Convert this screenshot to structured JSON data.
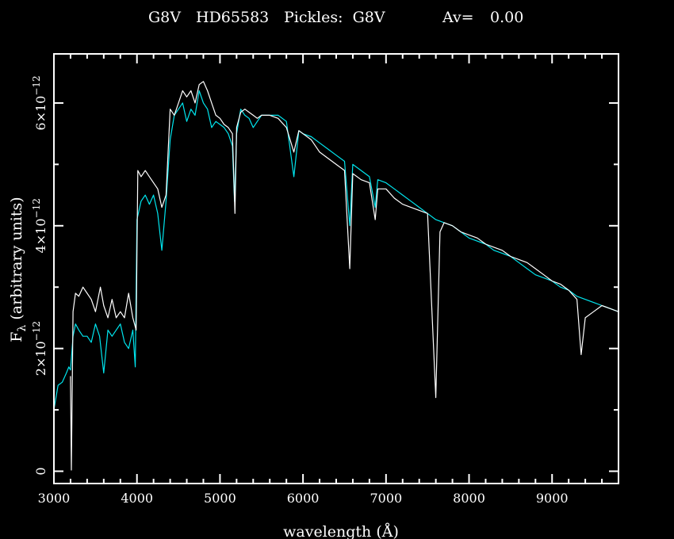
{
  "chart_data": {
    "type": "line",
    "title": {
      "spectral_type": "G8V",
      "star": "HD65583",
      "pickles": "Pickles:  G8V",
      "av_label": "Av=",
      "av_value": "0.00"
    },
    "xlabel": "wavelength (Å)",
    "ylabel_symbol": "F",
    "ylabel_subscript": "λ",
    "ylabel_text": "(arbitrary units)",
    "xlim": [
      3000,
      9800
    ],
    "ylim": [
      -2e-13,
      6.8e-12
    ],
    "x_ticks": [
      {
        "value": 3000,
        "label": "3000"
      },
      {
        "value": 4000,
        "label": "4000"
      },
      {
        "value": 5000,
        "label": "5000"
      },
      {
        "value": 6000,
        "label": "6000"
      },
      {
        "value": 7000,
        "label": "7000"
      },
      {
        "value": 8000,
        "label": "8000"
      },
      {
        "value": 9000,
        "label": "9000"
      }
    ],
    "y_ticks": [
      {
        "value": 0,
        "mantissa": "0",
        "exponent": ""
      },
      {
        "value": 2e-12,
        "mantissa": "2×10",
        "exponent": "−12"
      },
      {
        "value": 4e-12,
        "mantissa": "4×10",
        "exponent": "−12"
      },
      {
        "value": 6e-12,
        "mantissa": "6×10",
        "exponent": "−12"
      }
    ],
    "colors": {
      "background": "#000000",
      "axes": "#ffffff",
      "observed": "#ffffff",
      "template": "#00e5ee"
    },
    "series": [
      {
        "key": "observed",
        "x": [
          3200,
          3210,
          3230,
          3260,
          3300,
          3350,
          3400,
          3450,
          3500,
          3560,
          3600,
          3650,
          3700,
          3750,
          3800,
          3850,
          3900,
          3950,
          3990,
          4010,
          4050,
          4100,
          4150,
          4200,
          4250,
          4300,
          4350,
          4400,
          4450,
          4500,
          4550,
          4600,
          4650,
          4700,
          4750,
          4800,
          4850,
          4900,
          4950,
          5000,
          5050,
          5100,
          5150,
          5180,
          5200,
          5250,
          5300,
          5350,
          5400,
          5450,
          5500,
          5600,
          5700,
          5800,
          5890,
          5950,
          6000,
          6100,
          6200,
          6300,
          6400,
          6500,
          6563,
          6600,
          6700,
          6800,
          6870,
          6900,
          7000,
          7100,
          7200,
          7300,
          7400,
          7500,
          7600,
          7650,
          7700,
          7800,
          7900,
          8000,
          8100,
          8200,
          8300,
          8400,
          8500,
          8600,
          8700,
          8800,
          8900,
          9000,
          9100,
          9200,
          9300,
          9350,
          9400,
          9500,
          9600,
          9700,
          9800
        ],
        "y": [
          1.55e-12,
          2e-14,
          2.6e-12,
          2.9e-12,
          2.85e-12,
          3e-12,
          2.9e-12,
          2.8e-12,
          2.6e-12,
          3e-12,
          2.7e-12,
          2.5e-12,
          2.8e-12,
          2.5e-12,
          2.6e-12,
          2.5e-12,
          2.9e-12,
          2.5e-12,
          2.3e-12,
          4.9e-12,
          4.8e-12,
          4.9e-12,
          4.8e-12,
          4.7e-12,
          4.6e-12,
          4.3e-12,
          4.5e-12,
          5.9e-12,
          5.8e-12,
          6e-12,
          6.2e-12,
          6.1e-12,
          6.2e-12,
          6e-12,
          6.3e-12,
          6.35e-12,
          6.2e-12,
          6e-12,
          5.8e-12,
          5.75e-12,
          5.65e-12,
          5.6e-12,
          5.5e-12,
          4.2e-12,
          5.6e-12,
          5.85e-12,
          5.9e-12,
          5.85e-12,
          5.8e-12,
          5.75e-12,
          5.8e-12,
          5.8e-12,
          5.75e-12,
          5.6e-12,
          5.2e-12,
          5.55e-12,
          5.5e-12,
          5.4e-12,
          5.2e-12,
          5.1e-12,
          5e-12,
          4.9e-12,
          3.3e-12,
          4.85e-12,
          4.75e-12,
          4.7e-12,
          4.1e-12,
          4.6e-12,
          4.6e-12,
          4.45e-12,
          4.35e-12,
          4.3e-12,
          4.25e-12,
          4.2e-12,
          1.2e-12,
          3.9e-12,
          4.05e-12,
          4e-12,
          3.9e-12,
          3.85e-12,
          3.8e-12,
          3.7e-12,
          3.65e-12,
          3.6e-12,
          3.5e-12,
          3.45e-12,
          3.4e-12,
          3.3e-12,
          3.2e-12,
          3.1e-12,
          3.05e-12,
          2.95e-12,
          2.8e-12,
          1.9e-12,
          2.5e-12,
          2.6e-12,
          2.7e-12,
          2.65e-12,
          2.6e-12
        ]
      },
      {
        "key": "template",
        "x": [
          3000,
          3050,
          3100,
          3150,
          3180,
          3200,
          3230,
          3260,
          3300,
          3350,
          3400,
          3450,
          3500,
          3550,
          3600,
          3650,
          3700,
          3750,
          3800,
          3850,
          3900,
          3950,
          3980,
          4000,
          4050,
          4100,
          4150,
          4200,
          4250,
          4300,
          4350,
          4400,
          4450,
          4500,
          4550,
          4600,
          4650,
          4700,
          4750,
          4800,
          4850,
          4900,
          4950,
          5000,
          5050,
          5100,
          5150,
          5175,
          5200,
          5250,
          5300,
          5350,
          5400,
          5450,
          5500,
          5600,
          5700,
          5800,
          5890,
          5950,
          6000,
          6100,
          6200,
          6300,
          6400,
          6500,
          6563,
          6600,
          6700,
          6800,
          6870,
          6900,
          7000,
          7100,
          7200,
          7300,
          7400,
          7500,
          7600,
          7700,
          7800,
          7900,
          8000,
          8100,
          8200,
          8300,
          8400,
          8500,
          8600,
          8700,
          8800,
          8900,
          9000,
          9100,
          9200,
          9300,
          9400,
          9500,
          9600,
          9700,
          9800
        ],
        "y": [
          1e-12,
          1.4e-12,
          1.45e-12,
          1.6e-12,
          1.7e-12,
          1.65e-12,
          2.2e-12,
          2.4e-12,
          2.3e-12,
          2.2e-12,
          2.2e-12,
          2.1e-12,
          2.4e-12,
          2.2e-12,
          1.6e-12,
          2.3e-12,
          2.2e-12,
          2.3e-12,
          2.4e-12,
          2.1e-12,
          2e-12,
          2.3e-12,
          1.7e-12,
          4.1e-12,
          4.4e-12,
          4.5e-12,
          4.35e-12,
          4.5e-12,
          4.2e-12,
          3.6e-12,
          4.4e-12,
          5.4e-12,
          5.8e-12,
          5.9e-12,
          6e-12,
          5.7e-12,
          5.9e-12,
          5.8e-12,
          6.2e-12,
          6e-12,
          5.9e-12,
          5.6e-12,
          5.7e-12,
          5.65e-12,
          5.6e-12,
          5.5e-12,
          5.3e-12,
          4.4e-12,
          5.5e-12,
          5.9e-12,
          5.8e-12,
          5.75e-12,
          5.6e-12,
          5.7e-12,
          5.8e-12,
          5.8e-12,
          5.8e-12,
          5.7e-12,
          4.8e-12,
          5.55e-12,
          5.5e-12,
          5.45e-12,
          5.35e-12,
          5.25e-12,
          5.15e-12,
          5.05e-12,
          4e-12,
          5e-12,
          4.9e-12,
          4.8e-12,
          4.3e-12,
          4.75e-12,
          4.7e-12,
          4.6e-12,
          4.5e-12,
          4.4e-12,
          4.3e-12,
          4.2e-12,
          4.1e-12,
          4.05e-12,
          4e-12,
          3.9e-12,
          3.8e-12,
          3.75e-12,
          3.7e-12,
          3.6e-12,
          3.55e-12,
          3.5e-12,
          3.4e-12,
          3.3e-12,
          3.2e-12,
          3.15e-12,
          3.1e-12,
          3e-12,
          2.95e-12,
          2.85e-12,
          2.8e-12,
          2.75e-12,
          2.7e-12,
          2.65e-12,
          2.6e-12
        ]
      }
    ]
  }
}
